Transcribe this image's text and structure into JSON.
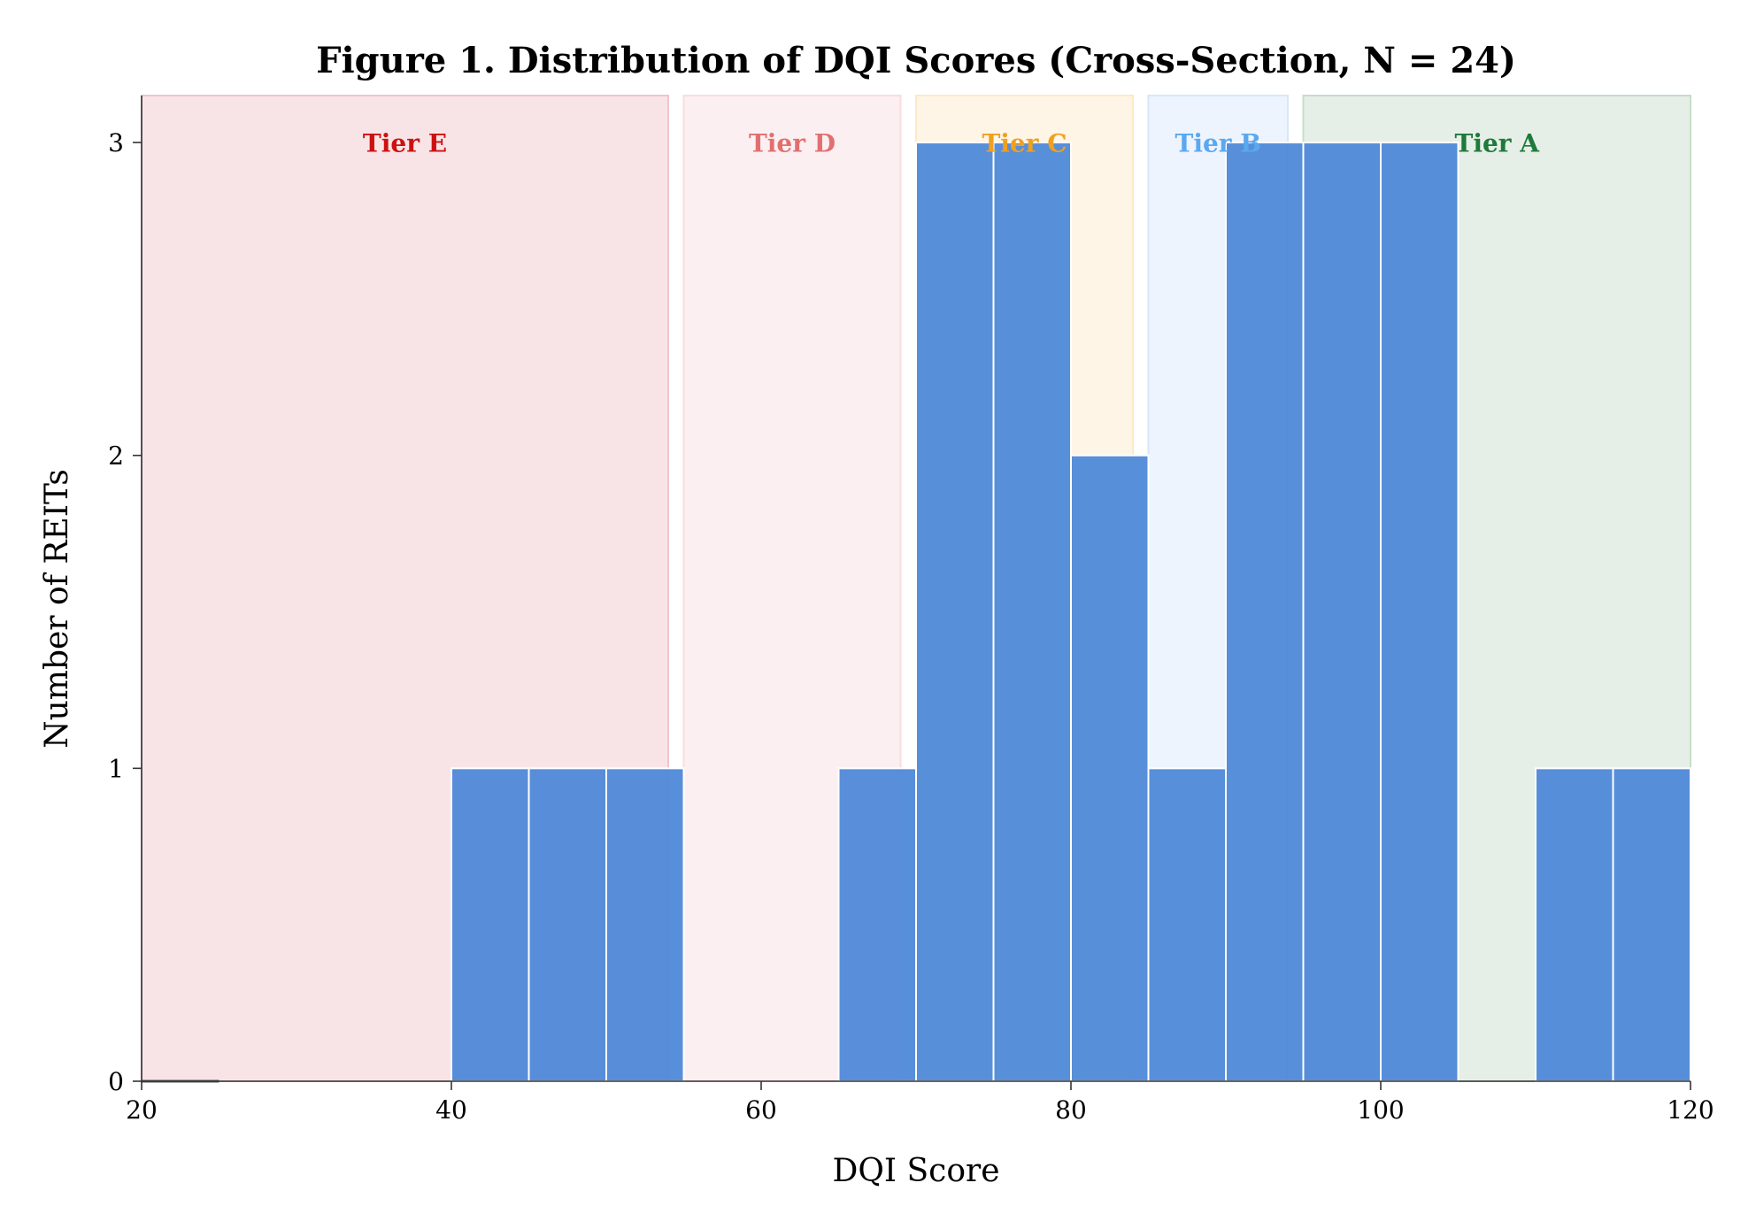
{
  "chart_data": {
    "type": "bar",
    "subtype": "histogram",
    "title": "Figure 1. Distribution of DQI Scores (Cross-Section, N = 24)",
    "xlabel": "DQI Score",
    "ylabel": "Number of REITs",
    "xlim": [
      20,
      120
    ],
    "ylim": [
      0,
      3.15
    ],
    "xticks": [
      20,
      40,
      60,
      80,
      100,
      120
    ],
    "yticks": [
      0,
      1,
      2,
      3
    ],
    "bar_color": "#4a86d8",
    "bins": [
      {
        "x0": 20,
        "x1": 25,
        "count": 0
      },
      {
        "x0": 40,
        "x1": 45,
        "count": 1
      },
      {
        "x0": 45,
        "x1": 50,
        "count": 1
      },
      {
        "x0": 50,
        "x1": 55,
        "count": 1
      },
      {
        "x0": 65,
        "x1": 70,
        "count": 1
      },
      {
        "x0": 70,
        "x1": 75,
        "count": 3
      },
      {
        "x0": 75,
        "x1": 80,
        "count": 3
      },
      {
        "x0": 80,
        "x1": 85,
        "count": 2
      },
      {
        "x0": 85,
        "x1": 90,
        "count": 1
      },
      {
        "x0": 90,
        "x1": 95,
        "count": 3
      },
      {
        "x0": 95,
        "x1": 100,
        "count": 3
      },
      {
        "x0": 100,
        "x1": 105,
        "count": 3
      },
      {
        "x0": 110,
        "x1": 115,
        "count": 1
      },
      {
        "x0": 115,
        "x1": 120,
        "count": 1
      }
    ],
    "tiers": [
      {
        "label": "Tier E",
        "x0": 20,
        "x1": 54,
        "fill": "#f0c4c8",
        "text_color": "#cc1111"
      },
      {
        "label": "Tier D",
        "x0": 55,
        "x1": 69,
        "fill": "#f9dcdf",
        "text_color": "#e07070"
      },
      {
        "label": "Tier C",
        "x0": 70,
        "x1": 84,
        "fill": "#fde8c8",
        "text_color": "#f0a020"
      },
      {
        "label": "Tier B",
        "x0": 85,
        "x1": 94,
        "fill": "#d6e7fb",
        "text_color": "#5aa8f0"
      },
      {
        "label": "Tier A",
        "x0": 95,
        "x1": 120,
        "fill": "#c7dcc9",
        "text_color": "#1e7a3a"
      }
    ]
  }
}
